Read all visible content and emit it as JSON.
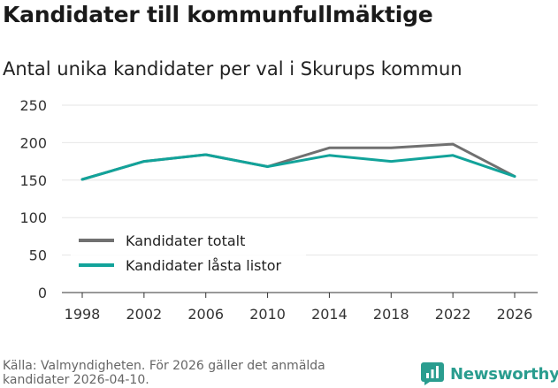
{
  "header": {
    "title": "Kandidater till kommunfullmäktige",
    "subtitle": "Antal unika kandidater per val i Skurups kommun"
  },
  "chart_data": {
    "type": "line",
    "title": "Kandidater till kommunfullmäktige",
    "subtitle": "Antal unika kandidater per val i Skurups kommun",
    "xlabel": "",
    "ylabel": "",
    "x": [
      1998,
      2002,
      2006,
      2010,
      2014,
      2018,
      2022,
      2026
    ],
    "x_tick_labels": [
      "1998",
      "2002",
      "2006",
      "2010",
      "2014",
      "2018",
      "2022",
      "2026"
    ],
    "y_ticks": [
      0,
      50,
      100,
      150,
      200,
      250
    ],
    "y_tick_labels": [
      "0",
      "50",
      "100",
      "150",
      "200",
      "250"
    ],
    "ylim": [
      0,
      250
    ],
    "grid": true,
    "legend_position": "bottom-left",
    "series": [
      {
        "name": "Kandidater totalt",
        "color": "#707070",
        "values": [
          151,
          175,
          184,
          168,
          193,
          193,
          198,
          155
        ]
      },
      {
        "name": "Kandidater låsta listor",
        "color": "#12a39a",
        "values": [
          151,
          175,
          184,
          168,
          183,
          175,
          183,
          155
        ]
      }
    ]
  },
  "footer": {
    "source_line1": "Källa: Valmyndigheten. För 2026 gäller det anmälda",
    "source_line2": "kandidater 2026-04-10.",
    "brand_name": "Newsworthy",
    "brand_color": "#2a9d8f"
  }
}
